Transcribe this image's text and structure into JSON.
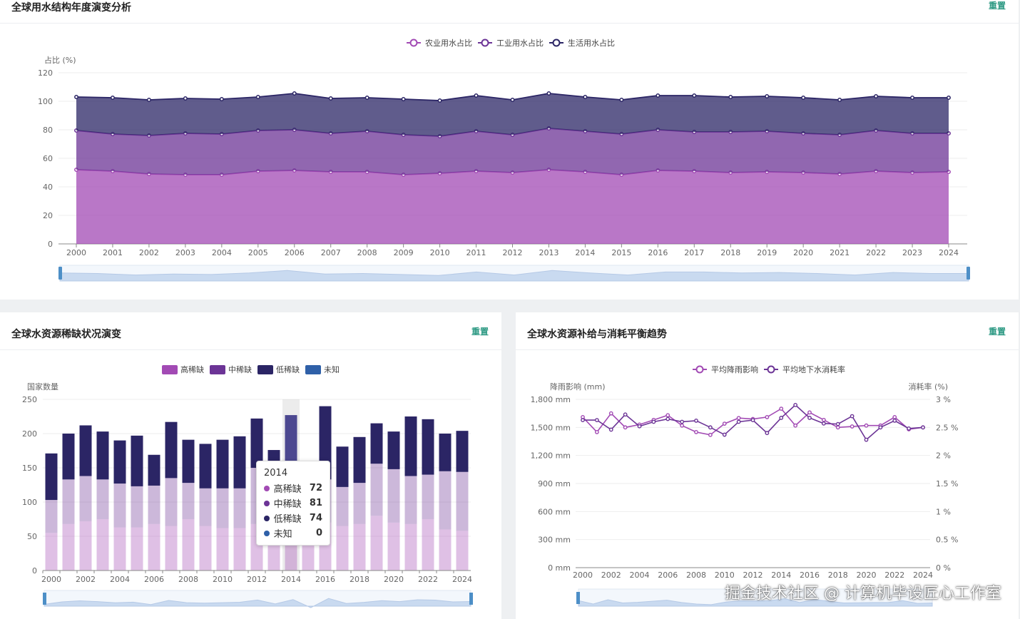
{
  "top": {
    "title": "全球用水结构年度演变分析",
    "reset": "重置",
    "chart_data": {
      "type": "area",
      "stacked": true,
      "ylabel": "占比 (%)",
      "ylim": [
        0,
        120
      ],
      "yticks": [
        0,
        20,
        40,
        60,
        80,
        100,
        120
      ],
      "categories": [
        "2000",
        "2001",
        "2002",
        "2003",
        "2004",
        "2005",
        "2006",
        "2007",
        "2008",
        "2009",
        "2010",
        "2011",
        "2012",
        "2013",
        "2014",
        "2015",
        "2016",
        "2017",
        "2018",
        "2019",
        "2020",
        "2021",
        "2022",
        "2023",
        "2024"
      ],
      "legend_position": "top-center",
      "grid": true,
      "series": [
        {
          "name": "农业用水占比",
          "color": "#a24ab4",
          "values": [
            52,
            51,
            49,
            48.5,
            48.5,
            51,
            51.5,
            50.5,
            50.5,
            48.5,
            49.5,
            51,
            50,
            52,
            50.5,
            48.5,
            51.5,
            51,
            50,
            50.5,
            50,
            49,
            51,
            50,
            50.5
          ]
        },
        {
          "name": "工业用水占比",
          "color": "#6c3496",
          "values": [
            27.5,
            26,
            27,
            29,
            28.5,
            28.5,
            28.5,
            27,
            28.5,
            28,
            26,
            28,
            26.5,
            29,
            28.5,
            28.5,
            28.5,
            27.5,
            28.5,
            28.5,
            27.5,
            27.5,
            28.5,
            27.5,
            27
          ]
        },
        {
          "name": "生活用水占比",
          "color": "#2b2565",
          "values": [
            23.5,
            25.5,
            25,
            24.5,
            24.5,
            23.5,
            25.5,
            24.5,
            23.5,
            25,
            25,
            25,
            24.5,
            24.5,
            24,
            24,
            24,
            25.5,
            24.5,
            24.5,
            25,
            24.5,
            24,
            25,
            25
          ]
        }
      ]
    }
  },
  "left": {
    "title": "全球水资源稀缺状况演变",
    "reset": "重置",
    "chart_data": {
      "type": "bar",
      "stacked": true,
      "ylabel": "国家数量",
      "ylim": [
        0,
        250
      ],
      "yticks": [
        0,
        50,
        100,
        150,
        200,
        250
      ],
      "categories": [
        "2000",
        "2001",
        "2002",
        "2003",
        "2004",
        "2005",
        "2006",
        "2007",
        "2008",
        "2009",
        "2010",
        "2011",
        "2012",
        "2013",
        "2014",
        "2015",
        "2016",
        "2017",
        "2018",
        "2019",
        "2020",
        "2021",
        "2022",
        "2023",
        "2024"
      ],
      "xtick_labels": [
        "2000",
        "2002",
        "2004",
        "2006",
        "2008",
        "2010",
        "2012",
        "2014",
        "2016",
        "2018",
        "2020",
        "2022",
        "2024"
      ],
      "legend_position": "top-center",
      "series": [
        {
          "name": "高稀缺",
          "color": "#a24ab4",
          "values": [
            55,
            68,
            72,
            75,
            63,
            63,
            68,
            65,
            75,
            65,
            62,
            62,
            68,
            60,
            72,
            55,
            70,
            65,
            68,
            80,
            70,
            68,
            75,
            60,
            58
          ]
        },
        {
          "name": "中稀缺",
          "color": "#6c3496",
          "values": [
            48,
            65,
            66,
            58,
            64,
            60,
            56,
            70,
            53,
            55,
            58,
            58,
            82,
            71,
            81,
            65,
            63,
            57,
            60,
            76,
            78,
            70,
            65,
            85,
            86
          ]
        },
        {
          "name": "低稀缺",
          "color": "#2b2565",
          "values": [
            68,
            67,
            74,
            70,
            63,
            74,
            45,
            82,
            63,
            65,
            71,
            76,
            72,
            45,
            74,
            13,
            107,
            59,
            67,
            59,
            55,
            87,
            81,
            55,
            60
          ]
        },
        {
          "name": "未知",
          "color": "#2f60a8",
          "values": [
            0,
            0,
            0,
            0,
            0,
            0,
            0,
            0,
            0,
            0,
            0,
            0,
            0,
            0,
            0,
            0,
            0,
            0,
            0,
            0,
            0,
            0,
            0,
            0,
            0
          ]
        }
      ],
      "tooltip": {
        "category": "2014",
        "rows": [
          {
            "name": "高稀缺",
            "value": "72"
          },
          {
            "name": "中稀缺",
            "value": "81"
          },
          {
            "name": "低稀缺",
            "value": "74"
          },
          {
            "name": "未知",
            "value": "0"
          }
        ]
      }
    }
  },
  "right": {
    "title": "全球水资源补给与消耗平衡趋势",
    "reset": "重置",
    "chart_data": {
      "type": "line",
      "ylabel_left": "降雨影响 (mm)",
      "ylabel_right": "消耗率 (%)",
      "ylim_left": [
        0,
        1800
      ],
      "ylim_right": [
        0,
        3
      ],
      "yticks_left": [
        "0 mm",
        "300 mm",
        "600 mm",
        "900 mm",
        "1,200 mm",
        "1,500 mm",
        "1,800 mm"
      ],
      "yticks_right": [
        "0 %",
        "0.5 %",
        "1 %",
        "1.5 %",
        "2 %",
        "2.5 %",
        "3 %"
      ],
      "categories": [
        "2000",
        "2001",
        "2002",
        "2003",
        "2004",
        "2005",
        "2006",
        "2007",
        "2008",
        "2009",
        "2010",
        "2011",
        "2012",
        "2013",
        "2014",
        "2015",
        "2016",
        "2017",
        "2018",
        "2019",
        "2020",
        "2021",
        "2022",
        "2023",
        "2024"
      ],
      "xtick_labels": [
        "2000",
        "2002",
        "2004",
        "2006",
        "2008",
        "2010",
        "2012",
        "2014",
        "2016",
        "2018",
        "2020",
        "2022",
        "2024"
      ],
      "legend_position": "top-center",
      "series": [
        {
          "name": "平均降雨影响",
          "color": "#a24ab4",
          "axis": "left",
          "values": [
            1610,
            1450,
            1650,
            1500,
            1530,
            1580,
            1630,
            1520,
            1450,
            1420,
            1540,
            1600,
            1590,
            1610,
            1700,
            1520,
            1660,
            1580,
            1500,
            1510,
            1520,
            1520,
            1610,
            1480,
            1500
          ]
        },
        {
          "name": "平均地下水消耗率",
          "color": "#6c3496",
          "axis": "right",
          "values": [
            2.63,
            2.63,
            2.46,
            2.73,
            2.52,
            2.6,
            2.65,
            2.6,
            2.62,
            2.5,
            2.37,
            2.6,
            2.63,
            2.4,
            2.67,
            2.9,
            2.67,
            2.57,
            2.56,
            2.7,
            2.28,
            2.5,
            2.62,
            2.48,
            2.5
          ]
        }
      ]
    }
  },
  "watermark": "掘金技术社区 @ 计算机毕设匠心工作室"
}
